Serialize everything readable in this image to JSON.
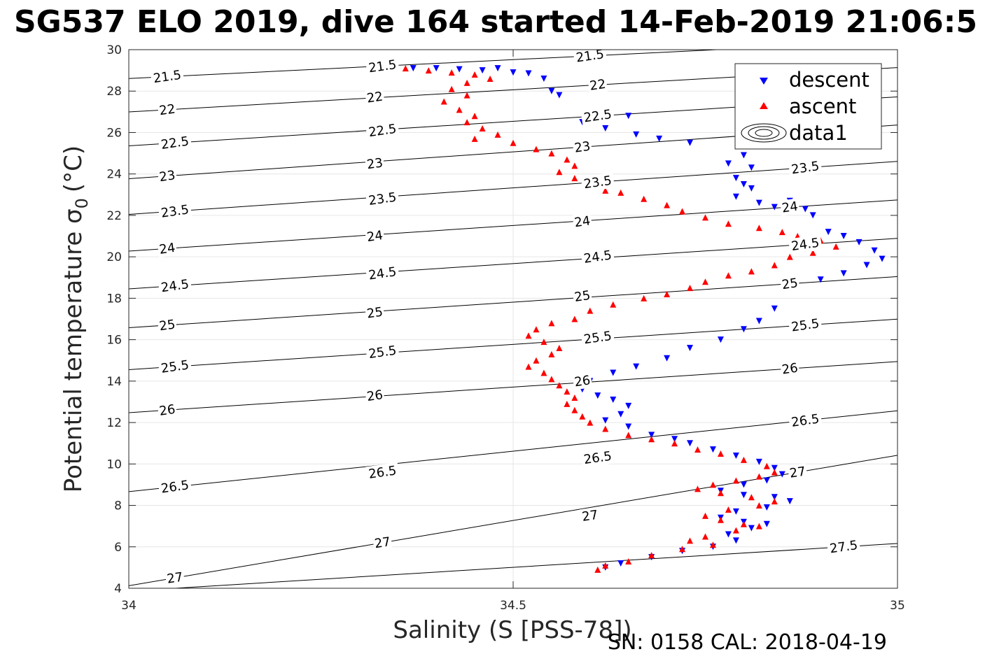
{
  "chart_data": {
    "type": "scatter",
    "title": "SG537 ELO 2019, dive 164 started 14-Feb-2019 21:06:5",
    "xlabel": "Salinity (S [PSS-78])",
    "ylabel": "Potential temperature σ",
    "ylabel_subscript": "0",
    "ylabel_unit": "(°C)",
    "xlim": [
      34,
      35
    ],
    "ylim": [
      4,
      30
    ],
    "xticks": [
      "34",
      "34.5",
      "35"
    ],
    "yticks": [
      "4",
      "6",
      "8",
      "10",
      "12",
      "14",
      "16",
      "18",
      "20",
      "22",
      "24",
      "26",
      "28",
      "30"
    ],
    "grid": true,
    "legend_position": "top-right",
    "legend": [
      "descent",
      "ascent",
      "data1"
    ],
    "footer": "SN: 0158  CAL: 2018-04-19",
    "colors": {
      "descent": "#0000ff",
      "ascent": "#ff0000",
      "contour": "#000000",
      "grid": "#e6e6e6"
    },
    "contour_labels": [
      {
        "text": "21.5",
        "x": 34.05,
        "y": 28.7
      },
      {
        "text": "21.5",
        "x": 34.33,
        "y": 29.2
      },
      {
        "text": "21.5",
        "x": 34.6,
        "y": 29.7
      },
      {
        "text": "22",
        "x": 34.05,
        "y": 27.1
      },
      {
        "text": "22",
        "x": 34.32,
        "y": 27.7
      },
      {
        "text": "22",
        "x": 34.61,
        "y": 28.3
      },
      {
        "text": "22.5",
        "x": 34.06,
        "y": 25.5
      },
      {
        "text": "22.5",
        "x": 34.33,
        "y": 26.1
      },
      {
        "text": "22.5",
        "x": 34.61,
        "y": 26.8
      },
      {
        "text": "23",
        "x": 34.05,
        "y": 23.9
      },
      {
        "text": "23",
        "x": 34.32,
        "y": 24.5
      },
      {
        "text": "23",
        "x": 34.59,
        "y": 25.3
      },
      {
        "text": "23.5",
        "x": 34.06,
        "y": 22.2
      },
      {
        "text": "23.5",
        "x": 34.33,
        "y": 22.8
      },
      {
        "text": "23.5",
        "x": 34.61,
        "y": 23.6
      },
      {
        "text": "23.5",
        "x": 34.88,
        "y": 24.3
      },
      {
        "text": "24",
        "x": 34.05,
        "y": 20.4
      },
      {
        "text": "24",
        "x": 34.32,
        "y": 21.0
      },
      {
        "text": "24",
        "x": 34.59,
        "y": 21.7
      },
      {
        "text": "24",
        "x": 34.86,
        "y": 22.4
      },
      {
        "text": "24.5",
        "x": 34.06,
        "y": 18.6
      },
      {
        "text": "24.5",
        "x": 34.33,
        "y": 19.2
      },
      {
        "text": "24.5",
        "x": 34.61,
        "y": 20.0
      },
      {
        "text": "24.5",
        "x": 34.88,
        "y": 20.6
      },
      {
        "text": "25",
        "x": 34.05,
        "y": 16.7
      },
      {
        "text": "25",
        "x": 34.32,
        "y": 17.3
      },
      {
        "text": "25",
        "x": 34.59,
        "y": 18.1
      },
      {
        "text": "25",
        "x": 34.86,
        "y": 18.7
      },
      {
        "text": "25.5",
        "x": 34.06,
        "y": 14.7
      },
      {
        "text": "25.5",
        "x": 34.33,
        "y": 15.4
      },
      {
        "text": "25.5",
        "x": 34.61,
        "y": 16.1
      },
      {
        "text": "25.5",
        "x": 34.88,
        "y": 16.7
      },
      {
        "text": "26",
        "x": 34.05,
        "y": 12.6
      },
      {
        "text": "26",
        "x": 34.32,
        "y": 13.3
      },
      {
        "text": "26",
        "x": 34.59,
        "y": 14.0
      },
      {
        "text": "26",
        "x": 34.86,
        "y": 14.6
      },
      {
        "text": "26.5",
        "x": 34.06,
        "y": 8.9
      },
      {
        "text": "26.5",
        "x": 34.33,
        "y": 9.6
      },
      {
        "text": "26.5",
        "x": 34.61,
        "y": 10.3
      },
      {
        "text": "26.5",
        "x": 34.88,
        "y": 12.1
      },
      {
        "text": "27",
        "x": 34.06,
        "y": 4.5
      },
      {
        "text": "27",
        "x": 34.33,
        "y": 6.2
      },
      {
        "text": "27",
        "x": 34.6,
        "y": 7.5
      },
      {
        "text": "27",
        "x": 34.87,
        "y": 9.6
      },
      {
        "text": "27.5",
        "x": 34.93,
        "y": 6.0
      }
    ],
    "series": [
      {
        "name": "descent",
        "marker": "triangle-down",
        "points": [
          [
            34.37,
            29.1
          ],
          [
            34.4,
            29.1
          ],
          [
            34.43,
            29.05
          ],
          [
            34.46,
            29.0
          ],
          [
            34.48,
            29.1
          ],
          [
            34.5,
            28.9
          ],
          [
            34.52,
            28.85
          ],
          [
            34.54,
            28.6
          ],
          [
            34.55,
            28.0
          ],
          [
            34.56,
            27.8
          ],
          [
            34.59,
            26.5
          ],
          [
            34.62,
            26.2
          ],
          [
            34.65,
            26.8
          ],
          [
            34.66,
            25.9
          ],
          [
            34.69,
            25.7
          ],
          [
            34.73,
            25.5
          ],
          [
            34.78,
            24.5
          ],
          [
            34.8,
            24.9
          ],
          [
            34.81,
            24.3
          ],
          [
            34.79,
            23.8
          ],
          [
            34.8,
            23.5
          ],
          [
            34.81,
            23.3
          ],
          [
            34.79,
            22.9
          ],
          [
            34.82,
            22.6
          ],
          [
            34.84,
            22.4
          ],
          [
            34.86,
            22.7
          ],
          [
            34.88,
            22.3
          ],
          [
            34.89,
            22.0
          ],
          [
            34.91,
            21.2
          ],
          [
            34.93,
            21.0
          ],
          [
            34.95,
            20.7
          ],
          [
            34.97,
            20.3
          ],
          [
            34.98,
            19.9
          ],
          [
            34.96,
            19.6
          ],
          [
            34.93,
            19.2
          ],
          [
            34.9,
            18.9
          ],
          [
            34.86,
            18.8
          ],
          [
            34.84,
            17.5
          ],
          [
            34.82,
            16.9
          ],
          [
            34.8,
            16.5
          ],
          [
            34.77,
            16.0
          ],
          [
            34.73,
            15.6
          ],
          [
            34.7,
            15.1
          ],
          [
            34.66,
            14.7
          ],
          [
            34.63,
            14.4
          ],
          [
            34.6,
            14.0
          ],
          [
            34.59,
            13.6
          ],
          [
            34.61,
            13.3
          ],
          [
            34.63,
            13.1
          ],
          [
            34.65,
            12.8
          ],
          [
            34.64,
            12.4
          ],
          [
            34.62,
            12.1
          ],
          [
            34.65,
            11.8
          ],
          [
            34.68,
            11.4
          ],
          [
            34.71,
            11.2
          ],
          [
            34.73,
            11.0
          ],
          [
            34.76,
            10.7
          ],
          [
            34.79,
            10.4
          ],
          [
            34.82,
            10.1
          ],
          [
            34.84,
            9.8
          ],
          [
            34.85,
            9.5
          ],
          [
            34.83,
            9.2
          ],
          [
            34.8,
            9.0
          ],
          [
            34.77,
            8.7
          ],
          [
            34.8,
            8.5
          ],
          [
            34.84,
            8.4
          ],
          [
            34.86,
            8.2
          ],
          [
            34.83,
            7.9
          ],
          [
            34.79,
            7.7
          ],
          [
            34.77,
            7.4
          ],
          [
            34.8,
            7.2
          ],
          [
            34.83,
            7.1
          ],
          [
            34.81,
            6.9
          ],
          [
            34.78,
            6.6
          ],
          [
            34.79,
            6.3
          ],
          [
            34.76,
            6.0
          ],
          [
            34.72,
            5.8
          ],
          [
            34.68,
            5.5
          ],
          [
            34.64,
            5.2
          ],
          [
            34.62,
            5.0
          ]
        ]
      },
      {
        "name": "ascent",
        "marker": "triangle-up",
        "points": [
          [
            34.36,
            29.1
          ],
          [
            34.39,
            29.0
          ],
          [
            34.42,
            28.9
          ],
          [
            34.45,
            28.8
          ],
          [
            34.47,
            28.6
          ],
          [
            34.44,
            28.4
          ],
          [
            34.42,
            28.1
          ],
          [
            34.44,
            27.8
          ],
          [
            34.41,
            27.5
          ],
          [
            34.43,
            27.1
          ],
          [
            34.45,
            26.8
          ],
          [
            34.44,
            26.5
          ],
          [
            34.46,
            26.2
          ],
          [
            34.48,
            25.9
          ],
          [
            34.45,
            25.7
          ],
          [
            34.5,
            25.5
          ],
          [
            34.53,
            25.2
          ],
          [
            34.55,
            25.0
          ],
          [
            34.57,
            24.7
          ],
          [
            34.58,
            24.4
          ],
          [
            34.56,
            24.1
          ],
          [
            34.58,
            23.8
          ],
          [
            34.6,
            23.5
          ],
          [
            34.62,
            23.2
          ],
          [
            34.64,
            23.1
          ],
          [
            34.67,
            22.8
          ],
          [
            34.7,
            22.5
          ],
          [
            34.72,
            22.2
          ],
          [
            34.75,
            21.9
          ],
          [
            34.78,
            21.6
          ],
          [
            34.82,
            21.4
          ],
          [
            34.85,
            21.2
          ],
          [
            34.87,
            21.0
          ],
          [
            34.9,
            20.8
          ],
          [
            34.92,
            20.5
          ],
          [
            34.89,
            20.2
          ],
          [
            34.86,
            20.0
          ],
          [
            34.84,
            19.6
          ],
          [
            34.81,
            19.3
          ],
          [
            34.78,
            19.1
          ],
          [
            34.75,
            18.8
          ],
          [
            34.73,
            18.5
          ],
          [
            34.7,
            18.2
          ],
          [
            34.67,
            18.0
          ],
          [
            34.63,
            17.7
          ],
          [
            34.6,
            17.4
          ],
          [
            34.58,
            17.0
          ],
          [
            34.55,
            16.8
          ],
          [
            34.53,
            16.5
          ],
          [
            34.52,
            16.2
          ],
          [
            34.54,
            15.9
          ],
          [
            34.56,
            15.6
          ],
          [
            34.55,
            15.3
          ],
          [
            34.53,
            15.0
          ],
          [
            34.52,
            14.7
          ],
          [
            34.54,
            14.4
          ],
          [
            34.55,
            14.1
          ],
          [
            34.56,
            13.8
          ],
          [
            34.57,
            13.5
          ],
          [
            34.58,
            13.2
          ],
          [
            34.57,
            12.9
          ],
          [
            34.58,
            12.6
          ],
          [
            34.59,
            12.3
          ],
          [
            34.6,
            12.0
          ],
          [
            34.62,
            11.7
          ],
          [
            34.65,
            11.4
          ],
          [
            34.68,
            11.2
          ],
          [
            34.71,
            11.0
          ],
          [
            34.74,
            10.7
          ],
          [
            34.77,
            10.5
          ],
          [
            34.8,
            10.2
          ],
          [
            34.83,
            9.9
          ],
          [
            34.84,
            9.6
          ],
          [
            34.82,
            9.4
          ],
          [
            34.79,
            9.2
          ],
          [
            34.76,
            9.0
          ],
          [
            34.74,
            8.8
          ],
          [
            34.77,
            8.6
          ],
          [
            34.81,
            8.4
          ],
          [
            34.84,
            8.2
          ],
          [
            34.82,
            8.0
          ],
          [
            34.78,
            7.8
          ],
          [
            34.75,
            7.5
          ],
          [
            34.77,
            7.3
          ],
          [
            34.8,
            7.1
          ],
          [
            34.82,
            7.0
          ],
          [
            34.79,
            6.8
          ],
          [
            34.75,
            6.5
          ],
          [
            34.73,
            6.3
          ],
          [
            34.76,
            6.1
          ],
          [
            34.72,
            5.9
          ],
          [
            34.68,
            5.6
          ],
          [
            34.65,
            5.3
          ],
          [
            34.62,
            5.1
          ],
          [
            34.61,
            4.9
          ]
        ]
      }
    ]
  }
}
